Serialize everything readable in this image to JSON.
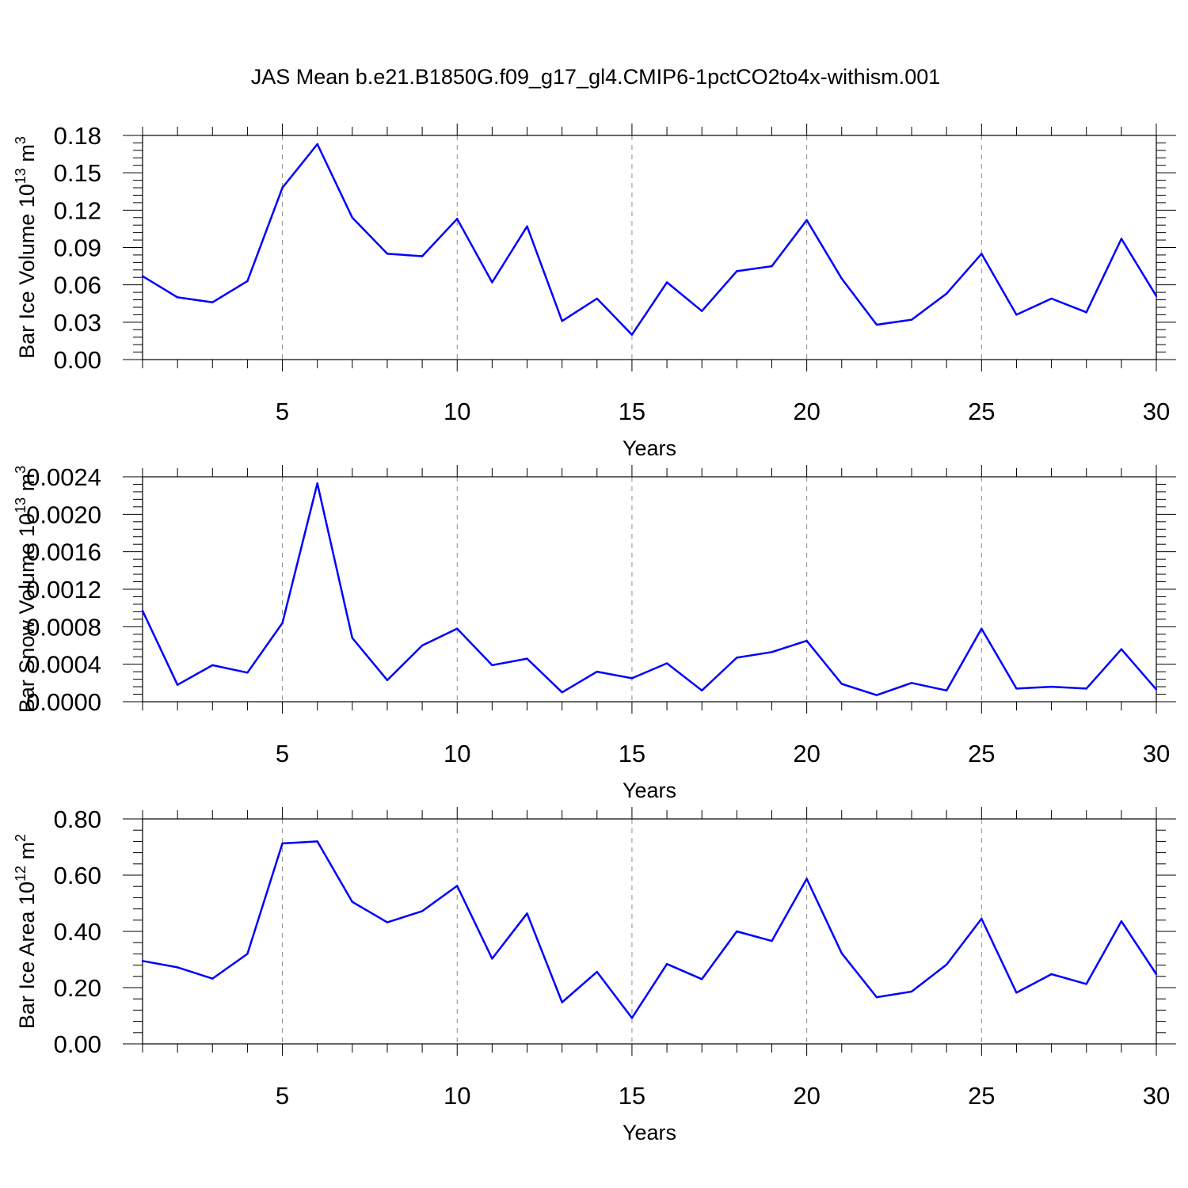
{
  "title": "JAS Mean b.e21.B1850G.f09_g17_gl4.CMIP6-1pctCO2to4x-withism.001",
  "colors": {
    "line": "#0000ff",
    "axis": "#000000",
    "grid": "#8c8c8c"
  },
  "chart_data": [
    {
      "type": "line",
      "ylabel_main": "Bar Ice Volume 10",
      "ylabel_sup": "13",
      "ylabel_unit": "m",
      "ylabel_unit_sup": "3",
      "xlabel": "Years",
      "xlim": [
        1,
        30
      ],
      "ylim": [
        0,
        0.18
      ],
      "yticks": [
        0,
        0.03,
        0.06,
        0.09,
        0.12,
        0.15,
        0.18
      ],
      "ytick_labels": [
        "0.00",
        "0.03",
        "0.06",
        "0.09",
        "0.12",
        "0.15",
        "0.18"
      ],
      "xticks": [
        5,
        10,
        15,
        20,
        25,
        30
      ],
      "xtick_labels": [
        "5",
        "10",
        "15",
        "20",
        "25",
        "30"
      ],
      "grid_x": [
        5,
        10,
        15,
        20,
        25
      ],
      "x": [
        1,
        2,
        3,
        4,
        5,
        6,
        7,
        8,
        9,
        10,
        11,
        12,
        13,
        14,
        15,
        16,
        17,
        18,
        19,
        20,
        21,
        22,
        23,
        24,
        25,
        26,
        27,
        28,
        29,
        30
      ],
      "values": [
        0.067,
        0.05,
        0.046,
        0.063,
        0.138,
        0.173,
        0.114,
        0.085,
        0.083,
        0.113,
        0.062,
        0.107,
        0.031,
        0.049,
        0.02,
        0.062,
        0.039,
        0.071,
        0.075,
        0.112,
        0.065,
        0.028,
        0.032,
        0.053,
        0.085,
        0.036,
        0.049,
        0.038,
        0.097,
        0.051
      ]
    },
    {
      "type": "line",
      "ylabel_main": "Bar Snow Volume 10",
      "ylabel_sup": "13",
      "ylabel_unit": "m",
      "ylabel_unit_sup": "3",
      "xlabel": "Years",
      "xlim": [
        1,
        30
      ],
      "ylim": [
        0,
        0.0024
      ],
      "yticks": [
        0,
        0.0004,
        0.0008,
        0.0012,
        0.0016,
        0.002,
        0.0024
      ],
      "ytick_labels": [
        "0.0000",
        "0.0004",
        "0.0008",
        "0.0012",
        "0.0016",
        "0.0020",
        "0.0024"
      ],
      "xticks": [
        5,
        10,
        15,
        20,
        25,
        30
      ],
      "xtick_labels": [
        "5",
        "10",
        "15",
        "20",
        "25",
        "30"
      ],
      "grid_x": [
        5,
        10,
        15,
        20,
        25
      ],
      "x": [
        1,
        2,
        3,
        4,
        5,
        6,
        7,
        8,
        9,
        10,
        11,
        12,
        13,
        14,
        15,
        16,
        17,
        18,
        19,
        20,
        21,
        22,
        23,
        24,
        25,
        26,
        27,
        28,
        29,
        30
      ],
      "values": [
        0.00097,
        0.00018,
        0.00039,
        0.00031,
        0.00084,
        0.00233,
        0.00068,
        0.00023,
        0.0006,
        0.00078,
        0.00039,
        0.00046,
        0.0001,
        0.00032,
        0.00025,
        0.00041,
        0.00012,
        0.00047,
        0.00053,
        0.00065,
        0.00019,
        7e-05,
        0.0002,
        0.00012,
        0.00078,
        0.00014,
        0.00016,
        0.00014,
        0.00056,
        0.00013
      ]
    },
    {
      "type": "line",
      "ylabel_main": "Bar Ice Area 10",
      "ylabel_sup": "12",
      "ylabel_unit": "m",
      "ylabel_unit_sup": "2",
      "xlabel": "Years",
      "xlim": [
        1,
        30
      ],
      "ylim": [
        0,
        0.8
      ],
      "yticks": [
        0,
        0.2,
        0.4,
        0.6,
        0.8
      ],
      "ytick_labels": [
        "0.00",
        "0.20",
        "0.40",
        "0.60",
        "0.80"
      ],
      "xticks": [
        5,
        10,
        15,
        20,
        25,
        30
      ],
      "xtick_labels": [
        "5",
        "10",
        "15",
        "20",
        "25",
        "30"
      ],
      "grid_x": [
        5,
        10,
        15,
        20,
        25
      ],
      "x": [
        1,
        2,
        3,
        4,
        5,
        6,
        7,
        8,
        9,
        10,
        11,
        12,
        13,
        14,
        15,
        16,
        17,
        18,
        19,
        20,
        21,
        22,
        23,
        24,
        25,
        26,
        27,
        28,
        29,
        30
      ],
      "values": [
        0.295,
        0.272,
        0.232,
        0.32,
        0.713,
        0.72,
        0.505,
        0.432,
        0.472,
        0.562,
        0.303,
        0.464,
        0.148,
        0.256,
        0.092,
        0.284,
        0.23,
        0.4,
        0.366,
        0.587,
        0.322,
        0.166,
        0.186,
        0.282,
        0.445,
        0.182,
        0.248,
        0.213,
        0.436,
        0.248
      ]
    }
  ]
}
